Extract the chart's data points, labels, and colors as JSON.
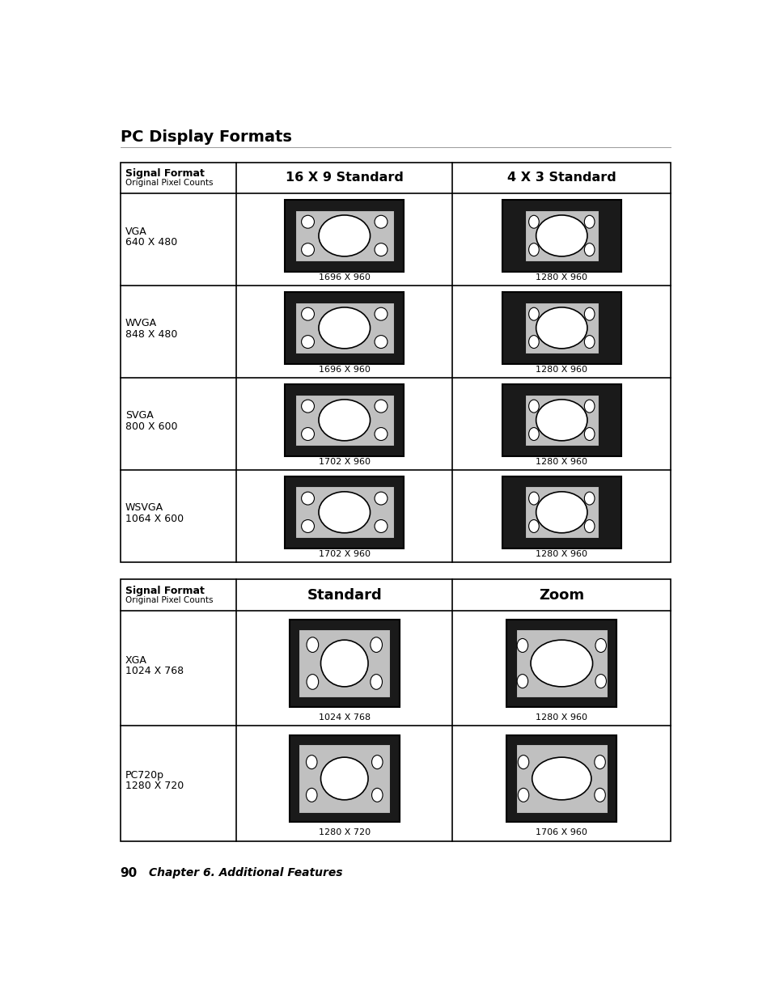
{
  "title": "PC Display Formats",
  "page_footer": "90",
  "chapter_footer": "Chapter 6. Additional Features",
  "table1": {
    "header_col1_bold": "Signal Format",
    "header_col1_sub": "Original Pixel Counts",
    "header_col2": "16 X 9 Standard",
    "header_col3": "4 X 3 Standard",
    "rows": [
      {
        "label_bold": "VGA",
        "label_sub": "640 X 480",
        "col2_label": "1696 X 960",
        "col3_label": "1280 X 960",
        "col2_type": "wide_full",
        "col3_type": "wide_4x3"
      },
      {
        "label_bold": "WVGA",
        "label_sub": "848 X 480",
        "col2_label": "1696 X 960",
        "col3_label": "1280 X 960",
        "col2_type": "wide_full",
        "col3_type": "wide_4x3"
      },
      {
        "label_bold": "SVGA",
        "label_sub": "800 X 600",
        "col2_label": "1702 X 960",
        "col3_label": "1280 X 960",
        "col2_type": "wide_full",
        "col3_type": "wide_4x3"
      },
      {
        "label_bold": "WSVGA",
        "label_sub": "1064 X 600",
        "col2_label": "1702 X 960",
        "col3_label": "1280 X 960",
        "col2_type": "wide_full",
        "col3_type": "wide_4x3"
      }
    ]
  },
  "table2": {
    "header_col1_bold": "Signal Format",
    "header_col1_sub": "Original Pixel Counts",
    "header_col2": "Standard",
    "header_col3": "Zoom",
    "rows": [
      {
        "label_bold": "XGA",
        "label_sub": "1024 X 768",
        "col2_label": "1024 X 768",
        "col3_label": "1280 X 960",
        "col2_type": "std_square",
        "col3_type": "zoom_wide"
      },
      {
        "label_bold": "PC720p",
        "label_sub": "1280 X 720",
        "col2_label": "1280 X 720",
        "col3_label": "1706 X 960",
        "col2_type": "std_wide",
        "col3_type": "zoom_wide2"
      }
    ]
  },
  "bg_color": "#ffffff",
  "border_color": "#000000",
  "diagram_black": "#1a1a1a",
  "diagram_gray": "#c0c0c0",
  "diagram_white": "#ffffff"
}
